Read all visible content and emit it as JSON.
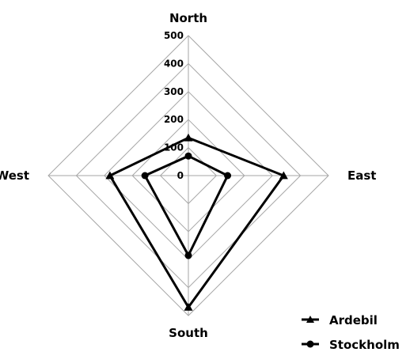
{
  "chart_data": {
    "type": "radar",
    "categories": [
      "North",
      "East",
      "South",
      "West"
    ],
    "rlim": [
      0,
      500
    ],
    "ticks": [
      "0",
      "100",
      "200",
      "300",
      "400",
      "500"
    ],
    "tick_values": [
      0,
      100,
      200,
      300,
      400,
      500
    ],
    "grid": true,
    "legend_position": "bottom-right",
    "series": [
      {
        "name": "Ardebil",
        "marker": "triangle",
        "color": "#000000",
        "values": [
          135,
          340,
          470,
          280
        ]
      },
      {
        "name": "Stockholm",
        "marker": "circle",
        "color": "#000000",
        "values": [
          70,
          140,
          285,
          155
        ]
      }
    ]
  }
}
